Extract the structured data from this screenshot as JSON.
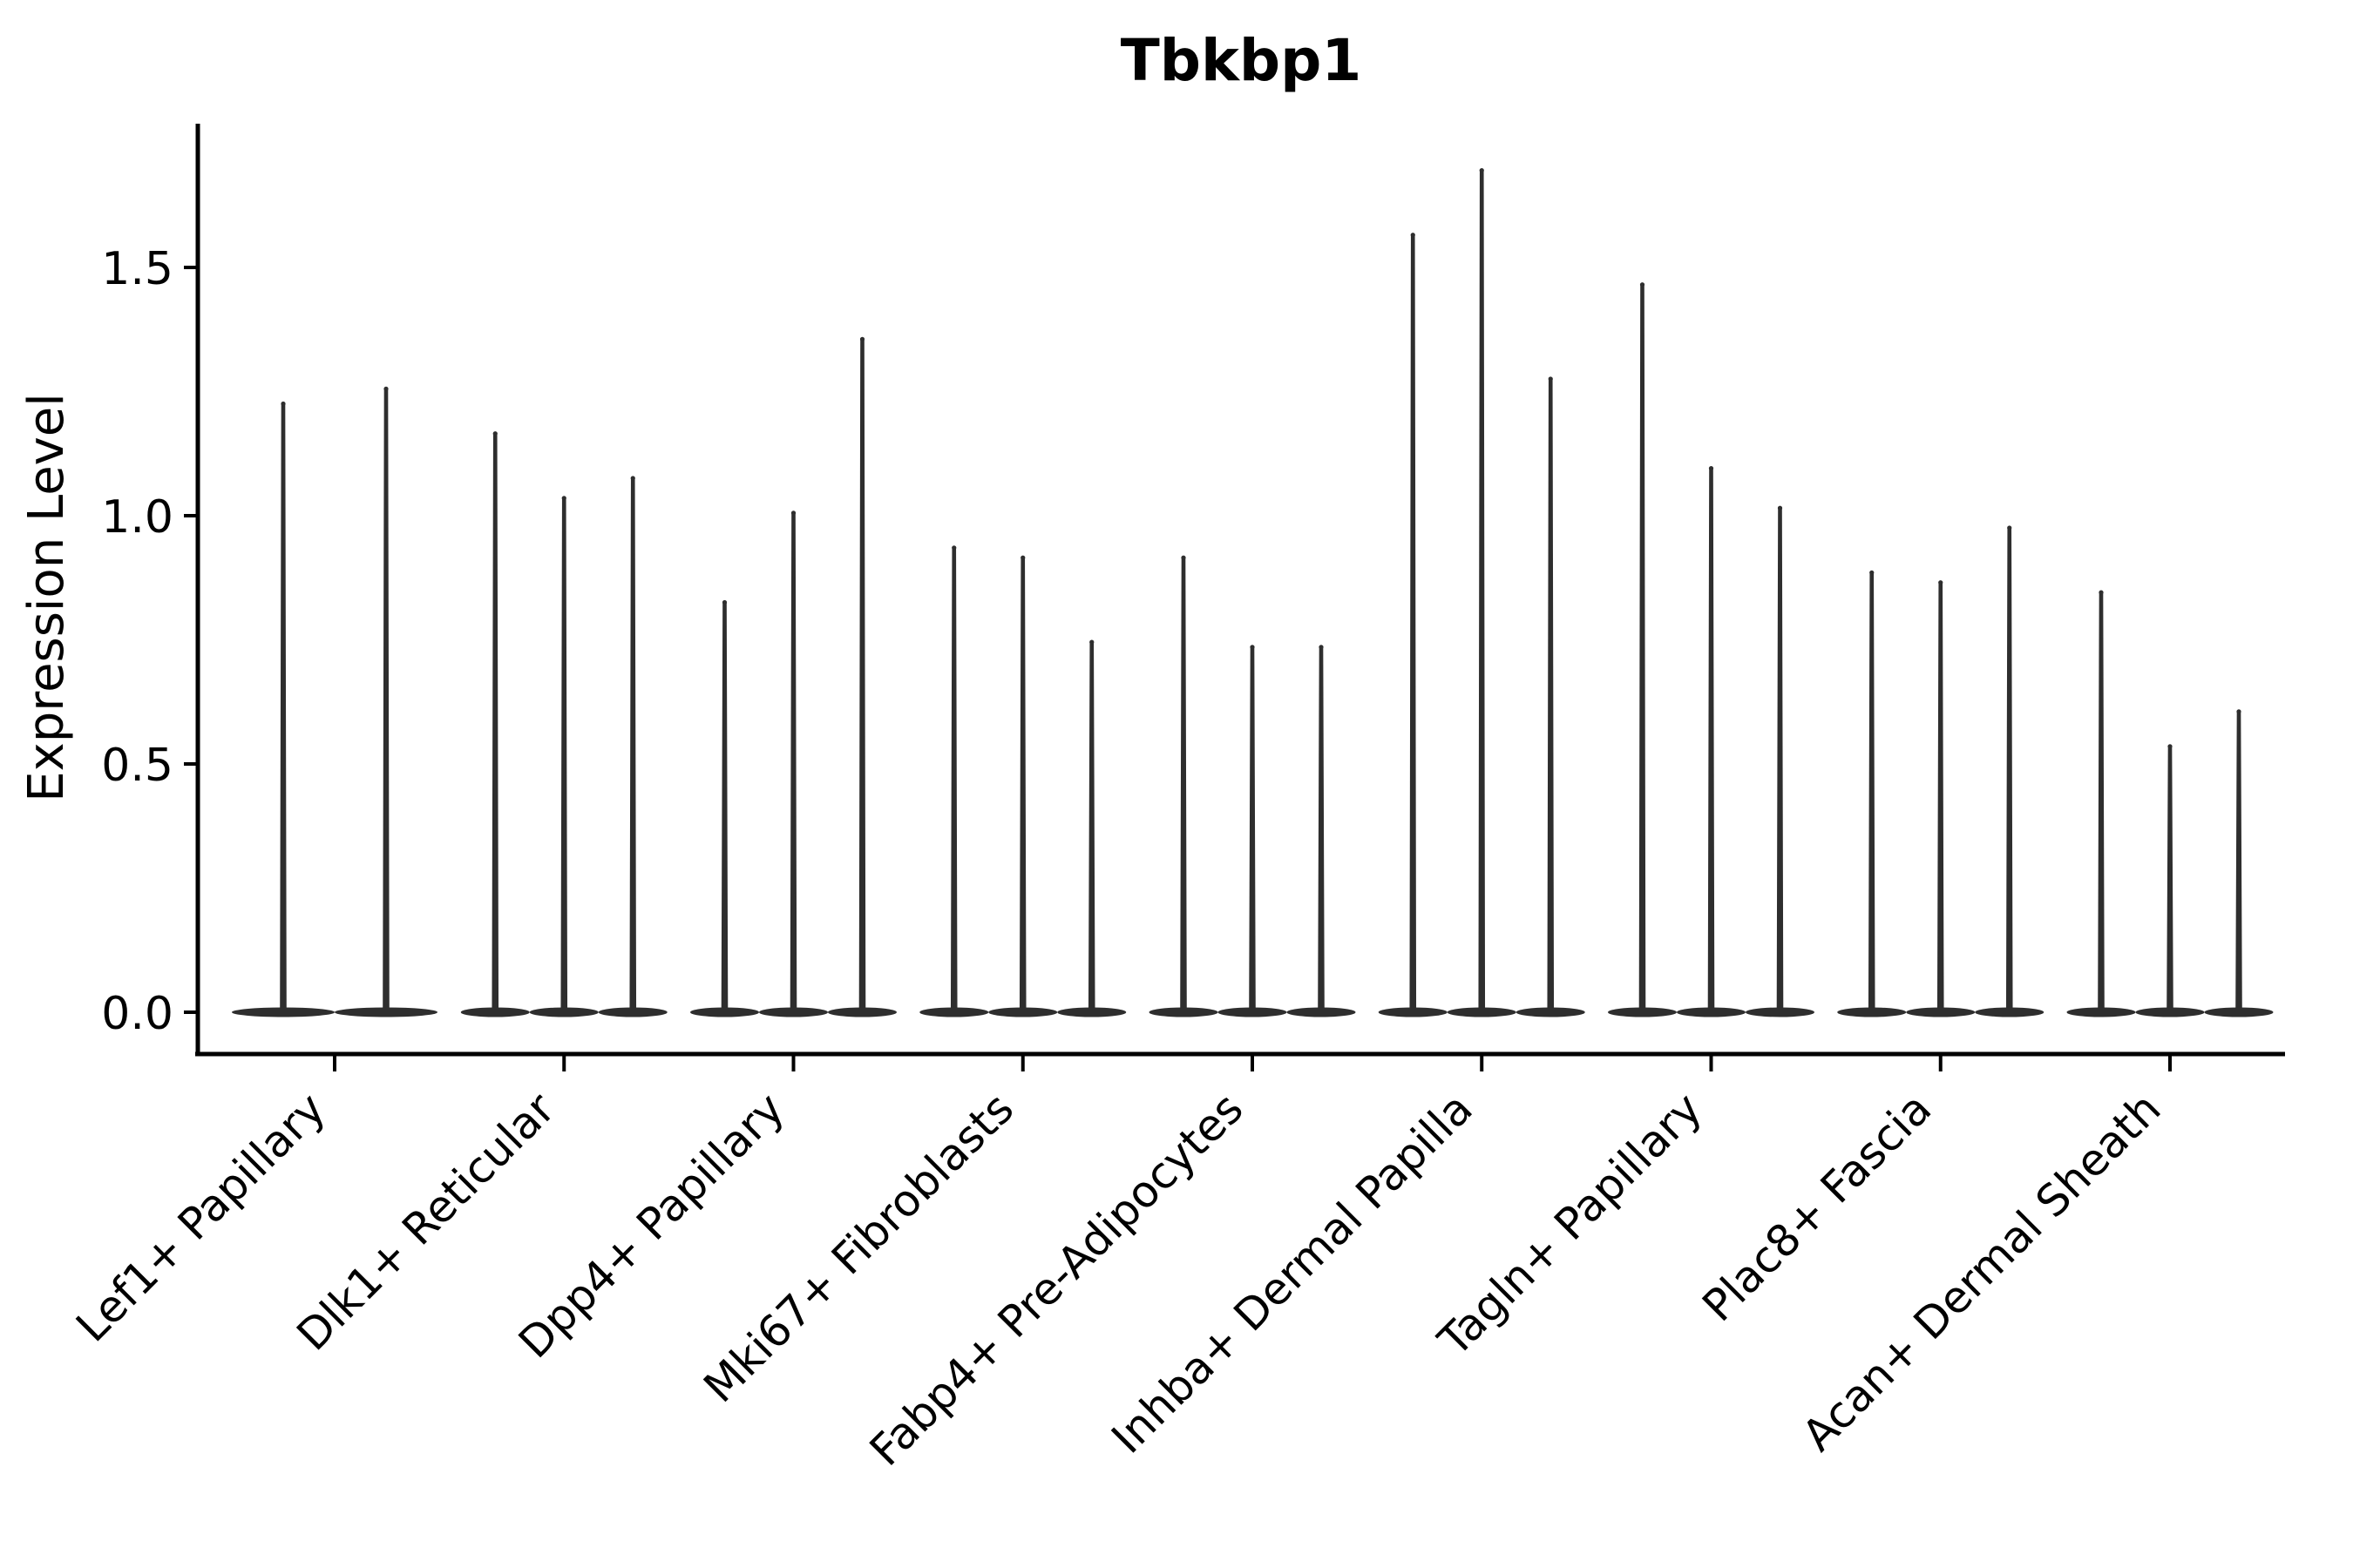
{
  "title": "Tbkbp1",
  "axes": {
    "y_label": "Expression Level",
    "y_tick_labels": [
      "0.0",
      "0.5",
      "1.0",
      "1.5"
    ]
  },
  "chart_data": {
    "type": "violin",
    "title": "Tbkbp1",
    "xlabel": "",
    "ylabel": "Expression Level",
    "ylim": [
      -0.08,
      1.79
    ],
    "y_ticks": [
      0.0,
      0.5,
      1.0,
      1.5
    ],
    "grid": false,
    "legend": "none",
    "violin_color": "#2e2e2e",
    "axis_color": "#000000",
    "categories": [
      "Lef1+ Papillary",
      "Dlk1+ Reticular",
      "Dpp4+ Papillary",
      "Mki67+ Fibroblasts",
      "Fabp4+ Pre-Adipocytes",
      "Inhba+ Dermal Papilla",
      "Tagln+ Papillary",
      "Plac8+ Fascia",
      "Acan+ Dermal Sheath"
    ],
    "groups": [
      {
        "category": "Lef1+ Papillary",
        "violin_peaks": [
          1.23,
          1.26
        ]
      },
      {
        "category": "Dlk1+ Reticular",
        "violin_peaks": [
          1.17,
          1.04,
          1.08
        ]
      },
      {
        "category": "Dpp4+ Papillary",
        "violin_peaks": [
          0.83,
          1.01,
          1.36
        ]
      },
      {
        "category": "Mki67+ Fibroblasts",
        "violin_peaks": [
          0.94,
          0.92,
          0.75
        ]
      },
      {
        "category": "Fabp4+ Pre-Adipocytes",
        "violin_peaks": [
          0.92,
          0.74,
          0.74
        ]
      },
      {
        "category": "Inhba+ Dermal Papilla",
        "violin_peaks": [
          1.57,
          1.7,
          1.28
        ]
      },
      {
        "category": "Tagln+ Papillary",
        "violin_peaks": [
          1.47,
          1.1,
          1.02
        ]
      },
      {
        "category": "Plac8+ Fascia",
        "violin_peaks": [
          0.89,
          0.87,
          0.98
        ]
      },
      {
        "category": "Acan+ Dermal Sheath",
        "violin_peaks": [
          0.85,
          0.54,
          0.61
        ]
      }
    ],
    "violin_shape_note": "Each violin is collapsed to a thin vertical spike rising from a flat wide base at expression level 0, peaking at violin_peaks value."
  }
}
